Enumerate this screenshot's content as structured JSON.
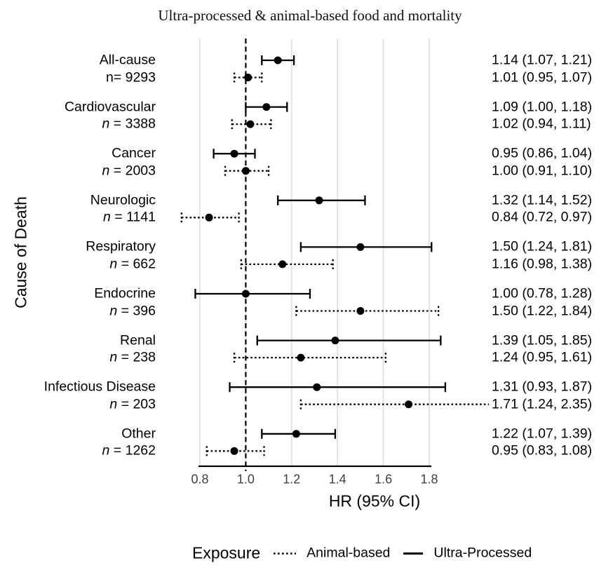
{
  "chart_data": {
    "type": "forest",
    "title": "Ultra-processed & animal-based food and mortality",
    "xlabel": "HR (95% CI)",
    "ylabel": "Cause of Death",
    "x_ticks": [
      0.8,
      1.0,
      1.2,
      1.4,
      1.6,
      1.8
    ],
    "x_tick_labels": [
      "0.8",
      "1.0",
      "1.2",
      "1.4",
      "1.6",
      "1.8"
    ],
    "xlim": [
      0.68,
      1.9
    ],
    "reference_line": 1.0,
    "grid": true,
    "series": [
      {
        "name": "Ultra-Processed",
        "style": "solid"
      },
      {
        "name": "Animal-based",
        "style": "dotted"
      }
    ],
    "groups": [
      {
        "label": "All-cause",
        "n_text": "n= 9293",
        "n_italic": false,
        "ultra": {
          "hr": 1.14,
          "lo": 1.07,
          "hi": 1.21,
          "text": "1.14 (1.07, 1.21)"
        },
        "animal": {
          "hr": 1.01,
          "lo": 0.95,
          "hi": 1.07,
          "text": "1.01 (0.95, 1.07)"
        }
      },
      {
        "label": "Cardiovascular",
        "n_text": "n = 3388",
        "n_italic": true,
        "ultra": {
          "hr": 1.09,
          "lo": 1.0,
          "hi": 1.18,
          "text": "1.09 (1.00, 1.18)"
        },
        "animal": {
          "hr": 1.02,
          "lo": 0.94,
          "hi": 1.11,
          "text": "1.02 (0.94, 1.11)"
        }
      },
      {
        "label": "Cancer",
        "n_text": "n = 2003",
        "n_italic": true,
        "ultra": {
          "hr": 0.95,
          "lo": 0.86,
          "hi": 1.04,
          "text": "0.95 (0.86, 1.04)"
        },
        "animal": {
          "hr": 1.0,
          "lo": 0.91,
          "hi": 1.1,
          "text": "1.00 (0.91, 1.10)"
        }
      },
      {
        "label": "Neurologic",
        "n_text": "n = 1141",
        "n_italic": true,
        "ultra": {
          "hr": 1.32,
          "lo": 1.14,
          "hi": 1.52,
          "text": "1.32 (1.14, 1.52)"
        },
        "animal": {
          "hr": 0.84,
          "lo": 0.72,
          "hi": 0.97,
          "text": "0.84 (0.72, 0.97)"
        }
      },
      {
        "label": "Respiratory",
        "n_text": "n = 662",
        "n_italic": true,
        "ultra": {
          "hr": 1.5,
          "lo": 1.24,
          "hi": 1.81,
          "text": "1.50 (1.24, 1.81)"
        },
        "animal": {
          "hr": 1.16,
          "lo": 0.98,
          "hi": 1.38,
          "text": "1.16 (0.98, 1.38)"
        }
      },
      {
        "label": "Endocrine",
        "n_text": "n = 396",
        "n_italic": true,
        "ultra": {
          "hr": 1.0,
          "lo": 0.78,
          "hi": 1.28,
          "text": "1.00 (0.78, 1.28)"
        },
        "animal": {
          "hr": 1.5,
          "lo": 1.22,
          "hi": 1.84,
          "text": "1.50 (1.22, 1.84)"
        }
      },
      {
        "label": "Renal",
        "n_text": "n = 238",
        "n_italic": true,
        "ultra": {
          "hr": 1.39,
          "lo": 1.05,
          "hi": 1.85,
          "text": "1.39 (1.05, 1.85)"
        },
        "animal": {
          "hr": 1.24,
          "lo": 0.95,
          "hi": 1.61,
          "text": "1.24 (0.95, 1.61)"
        }
      },
      {
        "label": "Infectious Disease",
        "n_text": "n = 203",
        "n_italic": true,
        "ultra": {
          "hr": 1.31,
          "lo": 0.93,
          "hi": 1.87,
          "text": "1.31 (0.93, 1.87)"
        },
        "animal": {
          "hr": 1.71,
          "lo": 1.24,
          "hi": 2.35,
          "text": "1.71 (1.24, 2.35)"
        }
      },
      {
        "label": "Other",
        "n_text": "n = 1262",
        "n_italic": true,
        "ultra": {
          "hr": 1.22,
          "lo": 1.07,
          "hi": 1.39,
          "text": "1.22 (1.07, 1.39)"
        },
        "animal": {
          "hr": 0.95,
          "lo": 0.83,
          "hi": 1.08,
          "text": "0.95 (0.83, 1.08)"
        }
      }
    ],
    "legend": {
      "title": "Exposure",
      "items": [
        {
          "label": "Animal-based",
          "style": "dotted"
        },
        {
          "label": "Ultra-Processed",
          "style": "solid"
        }
      ],
      "position": "bottom"
    },
    "colors": {
      "marker": "#000000",
      "text": "#000000",
      "tick_label": "#404040",
      "gridline": "#e0e0e0",
      "reference_line": "#000000"
    }
  }
}
